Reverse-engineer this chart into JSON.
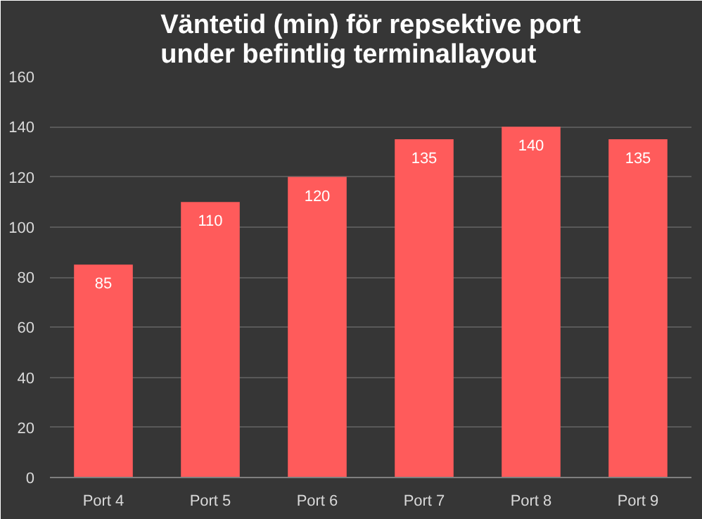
{
  "chart_data": {
    "type": "bar",
    "title": "Väntetid (min) för repsektive port\nunder befintlig terminallayout",
    "categories": [
      "Port 4",
      "Port 5",
      "Port 6",
      "Port 7",
      "Port 8",
      "Port 9"
    ],
    "values": [
      85,
      110,
      120,
      135,
      140,
      135
    ],
    "color": "#ff5b5b",
    "ylim": [
      0,
      160
    ],
    "yticks": [
      0,
      20,
      40,
      60,
      80,
      100,
      120,
      140,
      160
    ],
    "grid": "y",
    "data_labels": true
  }
}
